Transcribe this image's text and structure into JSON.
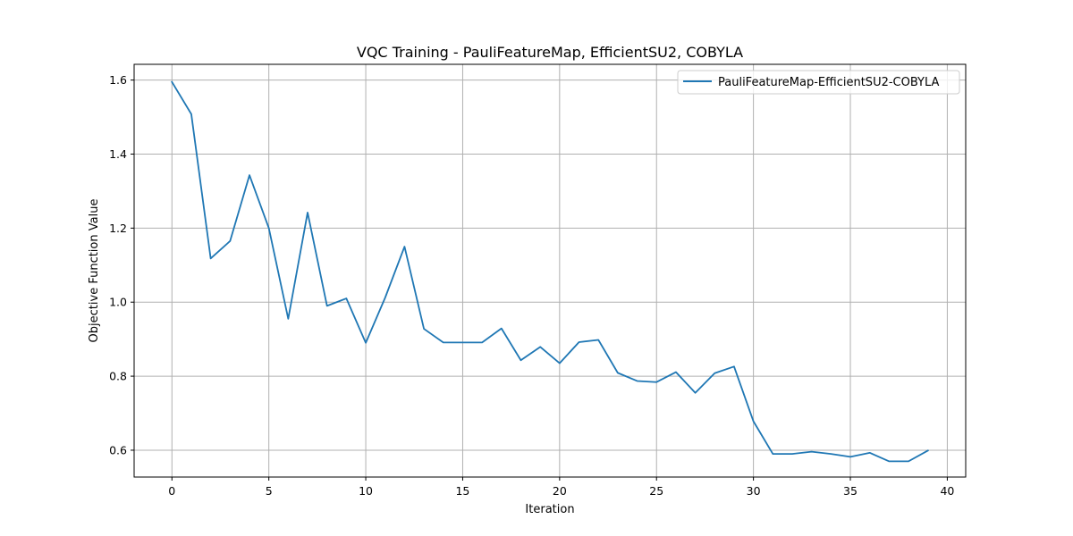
{
  "chart_data": {
    "type": "line",
    "title": "VQC Training - PauliFeatureMap, EfficientSU2, COBYLA",
    "xlabel": "Iteration",
    "ylabel": "Objective Function Value",
    "xlim": [
      -1.95,
      40.95
    ],
    "ylim": [
      0.5275,
      1.6425
    ],
    "x_ticks": [
      0,
      5,
      10,
      15,
      20,
      25,
      30,
      35,
      40
    ],
    "x_tick_labels": [
      "0",
      "5",
      "10",
      "15",
      "20",
      "25",
      "30",
      "35",
      "40"
    ],
    "y_ticks": [
      0.6,
      0.8,
      1.0,
      1.2,
      1.4,
      1.6
    ],
    "y_tick_labels": [
      "0.6",
      "0.8",
      "1.0",
      "1.2",
      "1.4",
      "1.6"
    ],
    "grid": true,
    "legend_position": "top-right",
    "series": [
      {
        "name": "PauliFeatureMap-EfficientSU2-COBYLA",
        "color": "#1f77b4",
        "x": [
          0,
          1,
          2,
          3,
          4,
          5,
          6,
          7,
          8,
          9,
          10,
          11,
          12,
          13,
          14,
          15,
          16,
          17,
          18,
          19,
          20,
          21,
          22,
          23,
          24,
          25,
          26,
          27,
          28,
          29,
          30,
          31,
          32,
          33,
          34,
          35,
          36,
          37,
          38,
          39
        ],
        "y": [
          1.595,
          1.508,
          1.118,
          1.165,
          1.343,
          1.2,
          0.955,
          1.242,
          0.99,
          1.01,
          0.89,
          1.012,
          1.15,
          0.928,
          0.891,
          0.891,
          0.891,
          0.929,
          0.843,
          0.879,
          0.835,
          0.892,
          0.898,
          0.809,
          0.787,
          0.784,
          0.811,
          0.755,
          0.808,
          0.826,
          0.678,
          0.59,
          0.59,
          0.596,
          0.59,
          0.582,
          0.593,
          0.57,
          0.57,
          0.599
        ]
      }
    ]
  }
}
